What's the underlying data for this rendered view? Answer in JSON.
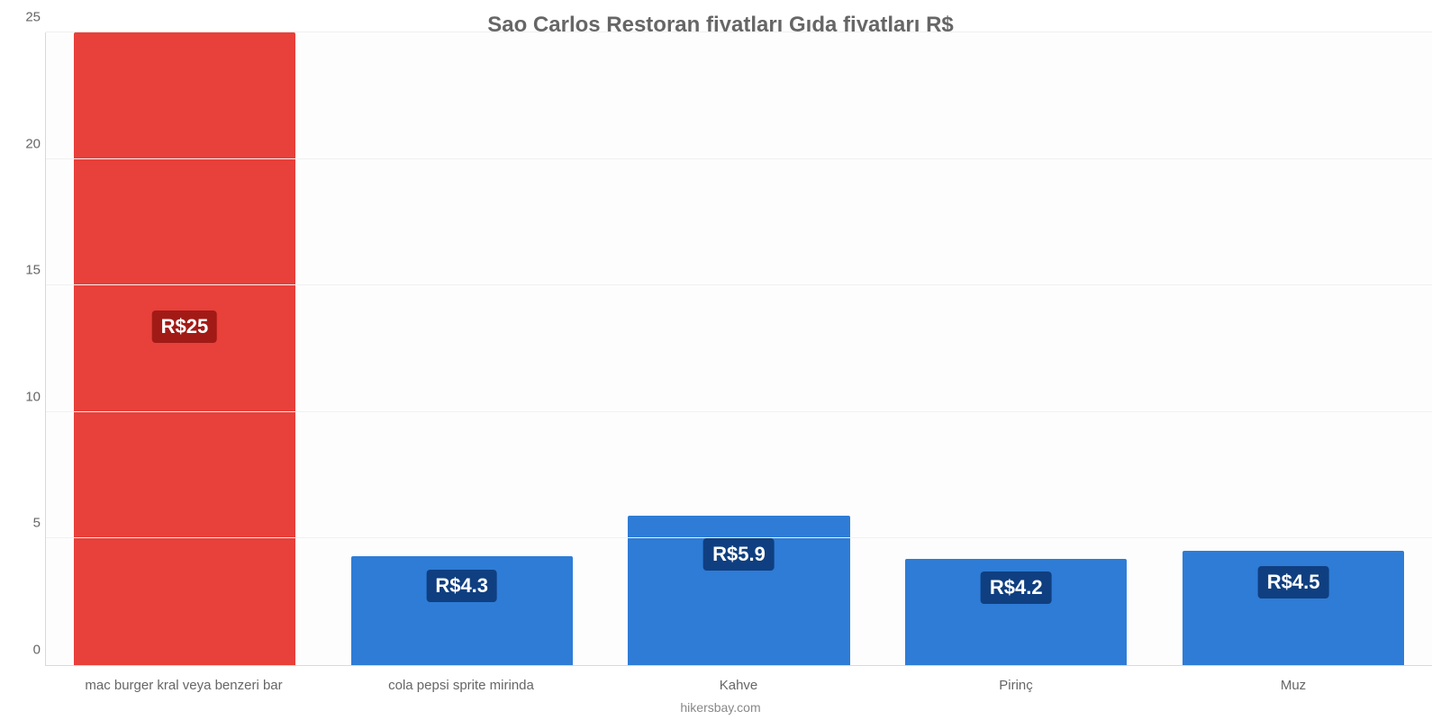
{
  "chart": {
    "type": "bar",
    "title": "Sao Carlos Restoran fiyatları Gıda fiyatları R$",
    "title_color": "#666666",
    "title_fontsize": 24,
    "background_color": "#ffffff",
    "plot_bg_color": "#fdfdfd",
    "grid_color": "#f0f0f0",
    "axis_line_color": "#d9d9d9",
    "axis_text_color": "#666666",
    "axis_fontsize": 15,
    "x_label_fontsize": 15,
    "ylim_min": 0,
    "ylim_max": 25,
    "ytick_step": 5,
    "bar_width_pct": 80,
    "value_label_fontsize": 22,
    "value_label_text_color": "#ffffff",
    "value_prefix": "R$",
    "footer": "hikersbay.com",
    "footer_color": "#888888",
    "footer_fontsize": 14,
    "categories": [
      "mac burger kral veya benzeri bar",
      "cola pepsi sprite mirinda",
      "Kahve",
      "Pirinç",
      "Muz"
    ],
    "values": [
      25,
      4.3,
      5.9,
      4.2,
      4.5
    ],
    "display_values": [
      "25",
      "4.3",
      "5.9",
      "4.2",
      "4.5"
    ],
    "bar_colors": [
      "#e8403a",
      "#2e7cd6",
      "#2e7cd6",
      "#2e7cd6",
      "#2e7cd6"
    ],
    "value_label_bg": [
      "#a21a16",
      "#0f3f80",
      "#0f3f80",
      "#0f3f80",
      "#0f3f80"
    ],
    "value_label_offsets_pct": [
      44,
      12,
      15,
      12,
      13
    ]
  }
}
